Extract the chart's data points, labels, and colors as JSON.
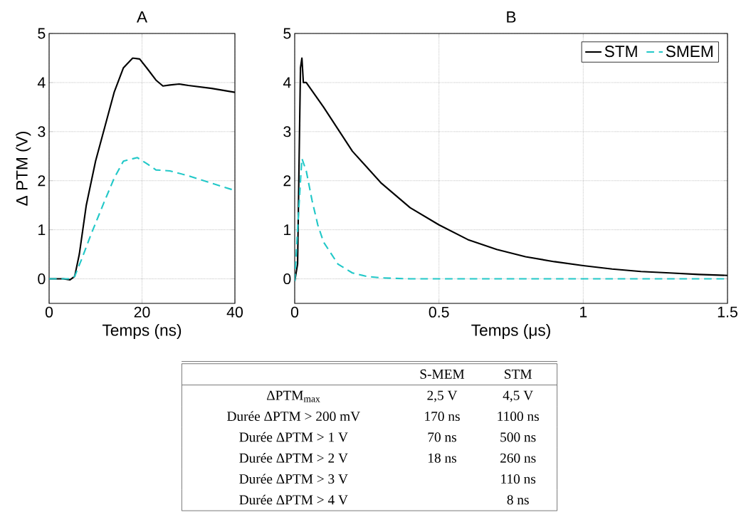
{
  "chart_data": [
    {
      "type": "line",
      "title": "A",
      "xlabel": "Temps (ns)",
      "ylabel": "Δ PTM (V)",
      "xlim": [
        0,
        40
      ],
      "ylim": [
        -0.5,
        5
      ],
      "xticks": [
        0,
        20,
        40
      ],
      "yticks": [
        0,
        1,
        2,
        3,
        4,
        5
      ],
      "grid": true,
      "marker": "none",
      "series": [
        {
          "color": "#000000",
          "line_style": "solid",
          "x": [
            0,
            3,
            4.5,
            5.5,
            6.5,
            8,
            10,
            12,
            14,
            16,
            18,
            19.5,
            21,
            23,
            24.5,
            26,
            28,
            30,
            35,
            40
          ],
          "values": [
            0,
            0,
            -0.02,
            0.05,
            0.5,
            1.5,
            2.4,
            3.1,
            3.8,
            4.3,
            4.5,
            4.48,
            4.3,
            4.05,
            3.93,
            3.95,
            3.97,
            3.94,
            3.88,
            3.8
          ]
        },
        {
          "color": "#22c8c8",
          "line_style": "dashed",
          "x": [
            0,
            4.5,
            5.5,
            7,
            9,
            12,
            14,
            16,
            19,
            21,
            23,
            26,
            30,
            35,
            40
          ],
          "values": [
            0,
            0,
            0.05,
            0.4,
            0.9,
            1.6,
            2.05,
            2.4,
            2.47,
            2.35,
            2.22,
            2.2,
            2.1,
            1.95,
            1.8
          ]
        }
      ]
    },
    {
      "type": "line",
      "title": "B",
      "xlabel": "Temps (μs)",
      "xlim": [
        0,
        1.5
      ],
      "ylim": [
        -0.5,
        5
      ],
      "xticks": [
        0,
        0.5,
        1,
        1.5
      ],
      "yticks": [
        0,
        1,
        2,
        3,
        4,
        5
      ],
      "grid": true,
      "marker": "none",
      "legend": "top right",
      "series": [
        {
          "name": "STM",
          "color": "#000000",
          "line_style": "solid",
          "x": [
            0,
            0.01,
            0.02,
            0.025,
            0.03,
            0.04,
            0.1,
            0.2,
            0.3,
            0.4,
            0.5,
            0.6,
            0.7,
            0.8,
            0.9,
            1.0,
            1.1,
            1.2,
            1.3,
            1.4,
            1.5
          ],
          "values": [
            -0.05,
            0.3,
            4.3,
            4.5,
            4.0,
            4.0,
            3.5,
            2.6,
            1.95,
            1.45,
            1.1,
            0.8,
            0.6,
            0.45,
            0.35,
            0.27,
            0.2,
            0.15,
            0.12,
            0.09,
            0.07
          ]
        },
        {
          "name": "SMEM",
          "color": "#22c8c8",
          "line_style": "dashed",
          "x": [
            0,
            0.01,
            0.02,
            0.025,
            0.04,
            0.06,
            0.08,
            0.1,
            0.15,
            0.2,
            0.25,
            0.3,
            0.4,
            1.5
          ],
          "values": [
            -0.05,
            1.0,
            2.0,
            2.45,
            2.2,
            1.6,
            1.1,
            0.75,
            0.3,
            0.12,
            0.05,
            0.02,
            0,
            0
          ]
        }
      ]
    },
    {
      "type": "other",
      "categories": [
        "S-MEM",
        "STM"
      ],
      "y_categories": [
        "ΔPTM$_{max}$",
        "Durée ΔPTM > 200 mV",
        "Durée ΔPTM > 1 V",
        "Durée ΔPTM > 2 V",
        "Durée ΔPTM > 3 V",
        "Durée ΔPTM > 4 V"
      ],
      "cell_labels": [
        [
          "2,5 V",
          "4,5 V"
        ],
        [
          "170 ns",
          "1100 ns"
        ],
        [
          "70 ns",
          "500 ns"
        ],
        [
          "18 ns",
          "260 ns"
        ],
        [
          null,
          "110 ns"
        ],
        [
          null,
          "8 ns"
        ]
      ]
    }
  ]
}
